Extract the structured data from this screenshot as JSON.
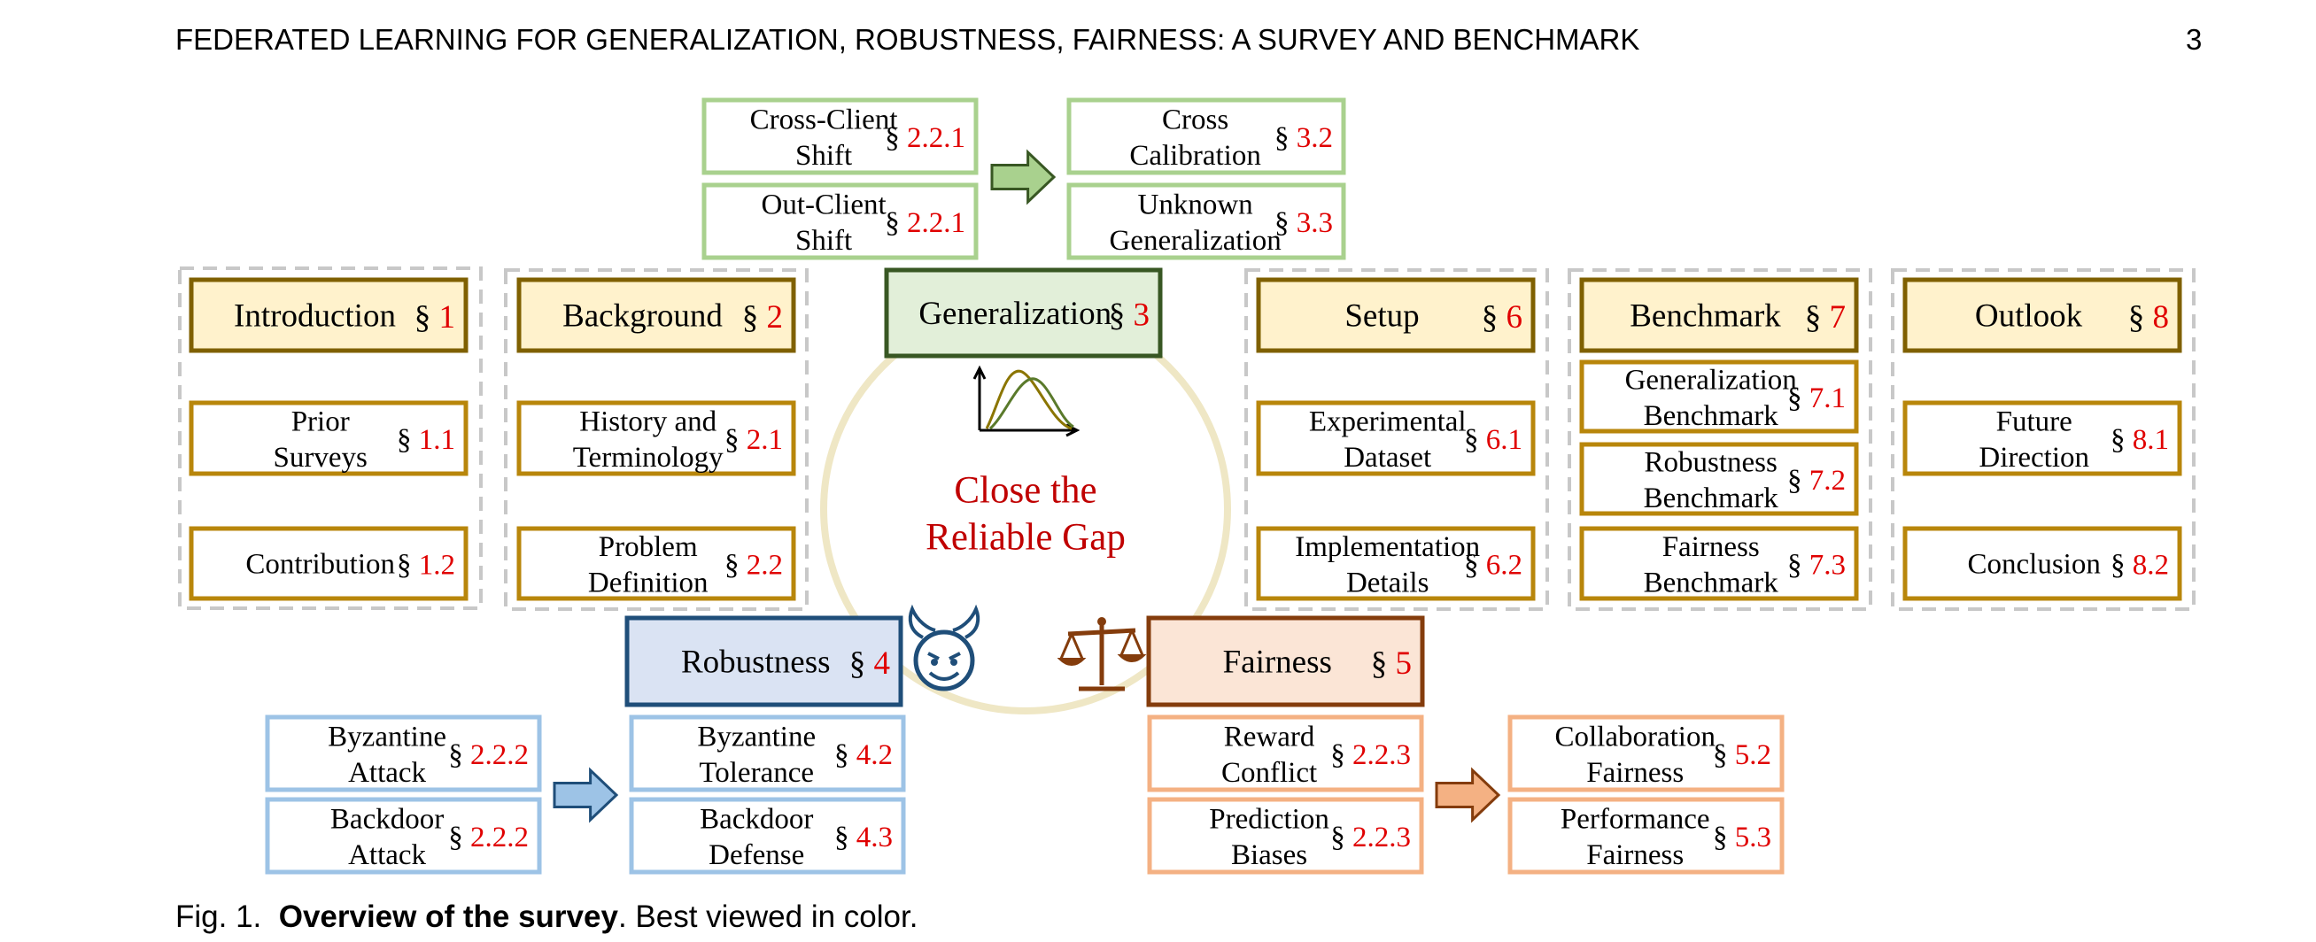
{
  "header": {
    "title": "FEDERATED LEARNING FOR GENERALIZATION, ROBUSTNESS, FAIRNESS: A SURVEY AND BENCHMARK",
    "page": "3"
  },
  "center": {
    "line1": "Close the",
    "line2": "Reliable Gap"
  },
  "colors": {
    "section_red": "#e00000",
    "gap_red": "#c00000",
    "gold": "#b8860b",
    "gold_fill": "#fff2cc",
    "green": "#a9d18e",
    "dark_green": "#385723",
    "green_fill": "#e2efd9",
    "blue": "#9dc3e6",
    "dark_blue": "#1f4e79",
    "blue_fill": "#dae3f3",
    "orange": "#f4b183",
    "dark_brown": "#843c0c",
    "orange_fill": "#fbe5d6",
    "circle": "#efe7c5"
  },
  "icons": {
    "chart": "line-chart-icon",
    "devil": "devil-face-icon",
    "scale": "balance-scale-icon"
  },
  "sections": [
    {
      "id": "introduction",
      "title": "Introduction",
      "ref": "1",
      "subs": [
        {
          "lines": [
            "Prior",
            "Surveys"
          ],
          "ref": "1.1"
        },
        {
          "lines": [
            "Contribution"
          ],
          "ref": "1.2"
        }
      ]
    },
    {
      "id": "background",
      "title": "Background",
      "ref": "2",
      "subs": [
        {
          "lines": [
            "History and",
            "Terminology"
          ],
          "ref": "2.1"
        },
        {
          "lines": [
            "Problem",
            "Definition"
          ],
          "ref": "2.2"
        }
      ]
    },
    {
      "id": "setup",
      "title": "Setup",
      "ref": "6",
      "subs": [
        {
          "lines": [
            "Experimental",
            "Dataset"
          ],
          "ref": "6.1"
        },
        {
          "lines": [
            "Implementation",
            "Details"
          ],
          "ref": "6.2"
        }
      ]
    },
    {
      "id": "benchmark",
      "title": "Benchmark",
      "ref": "7",
      "subs": [
        {
          "lines": [
            "Generalization",
            "Benchmark"
          ],
          "ref": "7.1"
        },
        {
          "lines": [
            "Robustness",
            "Benchmark"
          ],
          "ref": "7.2"
        },
        {
          "lines": [
            "Fairness",
            "Benchmark"
          ],
          "ref": "7.3"
        }
      ]
    },
    {
      "id": "outlook",
      "title": "Outlook",
      "ref": "8",
      "subs": [
        {
          "lines": [
            "Future",
            "Direction"
          ],
          "ref": "8.1"
        },
        {
          "lines": [
            "Conclusion"
          ],
          "ref": "8.2"
        }
      ]
    }
  ],
  "themes": [
    {
      "id": "generalization",
      "title": "Generalization",
      "ref": "3",
      "left": [
        {
          "lines": [
            "Cross-Client",
            "Shift"
          ],
          "ref": "2.2.1"
        },
        {
          "lines": [
            "Out-Client",
            "Shift"
          ],
          "ref": "2.2.1"
        }
      ],
      "right": [
        {
          "lines": [
            "Cross",
            "Calibration"
          ],
          "ref": "3.2"
        },
        {
          "lines": [
            "Unknown",
            "Generalization"
          ],
          "ref": "3.3"
        }
      ]
    },
    {
      "id": "robustness",
      "title": "Robustness",
      "ref": "4",
      "left": [
        {
          "lines": [
            "Byzantine",
            "Attack"
          ],
          "ref": "2.2.2"
        },
        {
          "lines": [
            "Backdoor",
            "Attack"
          ],
          "ref": "2.2.2"
        }
      ],
      "right": [
        {
          "lines": [
            "Byzantine",
            "Tolerance"
          ],
          "ref": "4.2"
        },
        {
          "lines": [
            "Backdoor",
            "Defense"
          ],
          "ref": "4.3"
        }
      ]
    },
    {
      "id": "fairness",
      "title": "Fairness",
      "ref": "5",
      "left": [
        {
          "lines": [
            "Reward",
            "Conflict"
          ],
          "ref": "2.2.3"
        },
        {
          "lines": [
            "Prediction",
            "Biases"
          ],
          "ref": "2.2.3"
        }
      ],
      "right": [
        {
          "lines": [
            "Collaboration",
            "Fairness"
          ],
          "ref": "5.2"
        },
        {
          "lines": [
            "Performance",
            "Fairness"
          ],
          "ref": "5.3"
        }
      ]
    }
  ],
  "caption": {
    "label": "Fig. 1.",
    "bold": "Overview of the survey",
    "rest": ". Best viewed in color."
  }
}
